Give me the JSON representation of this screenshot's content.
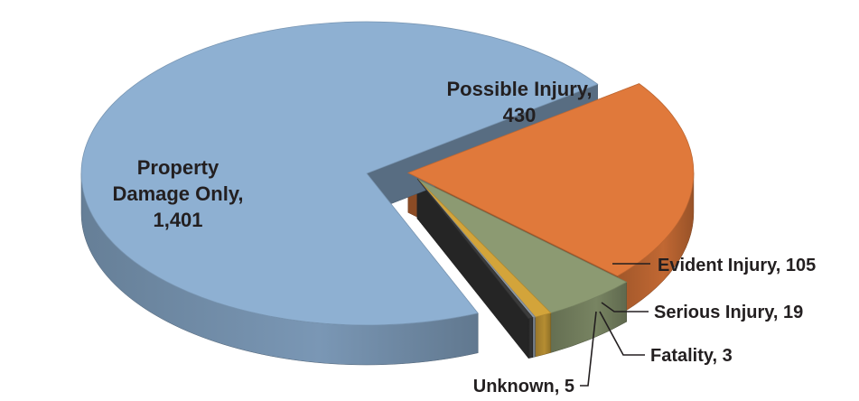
{
  "chart_data": {
    "type": "pie",
    "title": "",
    "slices": [
      {
        "label": "Property Damage Only",
        "value": 1401,
        "display": "Property Damage Only, 1,401",
        "color": "#8eb0d2"
      },
      {
        "label": "Possible Injury",
        "value": 430,
        "display": "Possible Injury, 430",
        "color": "#e0793b"
      },
      {
        "label": "Evident Injury",
        "value": 105,
        "display": "Evident Injury, 105",
        "color": "#8c9a72"
      },
      {
        "label": "Serious Injury",
        "value": 19,
        "display": "Serious Injury, 19",
        "color": "#d3a43a"
      },
      {
        "label": "Fatality",
        "value": 3,
        "display": "Fatality, 3",
        "color": "#8f9aa6"
      },
      {
        "label": "Unknown",
        "value": 5,
        "display": "Unknown, 5",
        "color": "#3b3b3b"
      }
    ],
    "labels": {
      "property": [
        "Property",
        "Damage Only,",
        "1,401"
      ],
      "possible": [
        "Possible Injury,",
        "430"
      ],
      "evident": "Evident Injury, 105",
      "serious": "Serious Injury, 19",
      "fatality": "Fatality, 3",
      "unknown": "Unknown, 5"
    }
  }
}
